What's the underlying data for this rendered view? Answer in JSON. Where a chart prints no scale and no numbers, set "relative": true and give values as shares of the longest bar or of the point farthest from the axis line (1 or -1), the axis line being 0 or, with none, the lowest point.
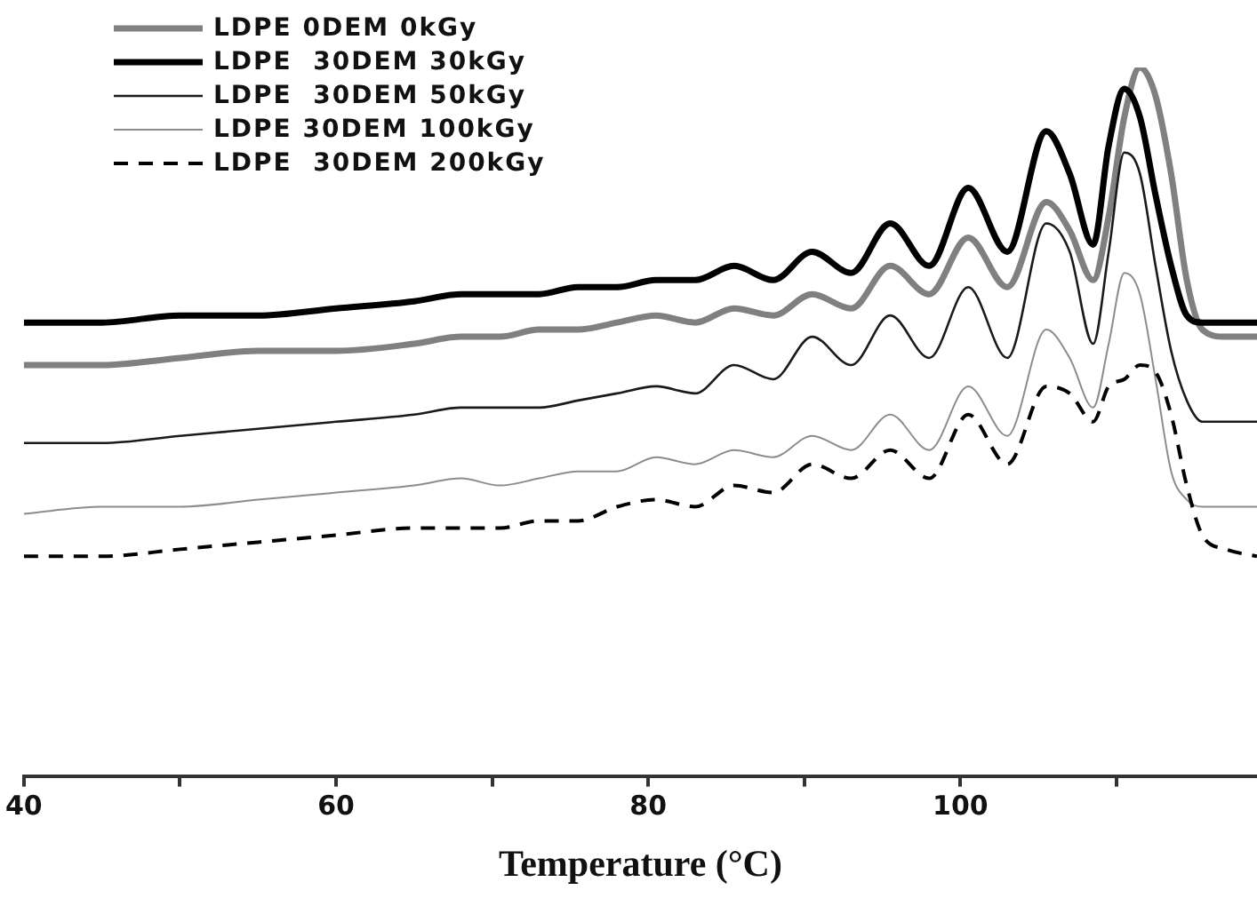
{
  "chart_data": {
    "type": "line",
    "relative": true,
    "xlabel": "Temperature (°C)",
    "xlim": [
      40,
      119
    ],
    "xticks": [
      40,
      {
        "value": 50,
        "label": null
      },
      60,
      {
        "value": 70,
        "label": null
      },
      80,
      {
        "value": 90,
        "label": null
      },
      100,
      {
        "value": 110,
        "label": null
      }
    ],
    "legend": "top left",
    "marker": "none",
    "x": [
      40,
      45,
      50,
      55,
      60,
      65,
      68,
      70.5,
      73,
      75.5,
      78,
      80.5,
      83,
      85.5,
      88,
      90.5,
      93,
      95.5,
      98,
      100.5,
      103,
      105.5,
      107,
      108.5,
      109.5,
      110.5,
      111.5,
      112.5,
      113.5,
      114.5,
      115.5,
      117,
      119
    ],
    "series": [
      {
        "name": "LDPE 0DEM 0kGy",
        "color": "#808080",
        "values": [
          0.58,
          0.58,
          0.59,
          0.6,
          0.6,
          0.61,
          0.62,
          0.62,
          0.63,
          0.63,
          0.64,
          0.65,
          0.64,
          0.66,
          0.65,
          0.68,
          0.66,
          0.72,
          0.68,
          0.76,
          0.69,
          0.81,
          0.77,
          0.7,
          0.79,
          0.93,
          1.0,
          0.96,
          0.85,
          0.7,
          0.63,
          0.62,
          0.62
        ]
      },
      {
        "name": "LDPE  30DEM 30kGy",
        "color": "#000000",
        "values": [
          0.64,
          0.64,
          0.65,
          0.65,
          0.66,
          0.67,
          0.68,
          0.68,
          0.68,
          0.69,
          0.69,
          0.7,
          0.7,
          0.72,
          0.7,
          0.74,
          0.71,
          0.78,
          0.72,
          0.83,
          0.74,
          0.91,
          0.85,
          0.75,
          0.89,
          0.97,
          0.93,
          0.82,
          0.72,
          0.65,
          0.64,
          0.64,
          0.64
        ]
      },
      {
        "name": "LDPE  30DEM 50kGy",
        "color": "#1a1a1a",
        "values": [
          0.47,
          0.47,
          0.48,
          0.49,
          0.5,
          0.51,
          0.52,
          0.52,
          0.52,
          0.53,
          0.54,
          0.55,
          0.54,
          0.58,
          0.56,
          0.62,
          0.58,
          0.65,
          0.59,
          0.69,
          0.59,
          0.78,
          0.74,
          0.61,
          0.74,
          0.88,
          0.85,
          0.72,
          0.6,
          0.53,
          0.5,
          0.5,
          0.5
        ]
      },
      {
        "name": "LDPE 30DEM 100kGy",
        "color": "#8c8c8c",
        "values": [
          0.37,
          0.38,
          0.38,
          0.39,
          0.4,
          0.41,
          0.42,
          0.41,
          0.42,
          0.43,
          0.43,
          0.45,
          0.44,
          0.46,
          0.45,
          0.48,
          0.46,
          0.51,
          0.46,
          0.55,
          0.48,
          0.63,
          0.59,
          0.52,
          0.61,
          0.71,
          0.68,
          0.56,
          0.43,
          0.39,
          0.38,
          0.38,
          0.38
        ]
      },
      {
        "name": "LDPE  30DEM 200kGy",
        "color": "#000000",
        "line_style": "dashed",
        "values": [
          0.31,
          0.31,
          0.32,
          0.33,
          0.34,
          0.35,
          0.35,
          0.35,
          0.36,
          0.36,
          0.38,
          0.39,
          0.38,
          0.41,
          0.4,
          0.44,
          0.42,
          0.46,
          0.42,
          0.51,
          0.44,
          0.55,
          0.54,
          0.5,
          0.55,
          0.56,
          0.58,
          0.57,
          0.51,
          0.41,
          0.34,
          0.32,
          0.31
        ]
      }
    ]
  }
}
